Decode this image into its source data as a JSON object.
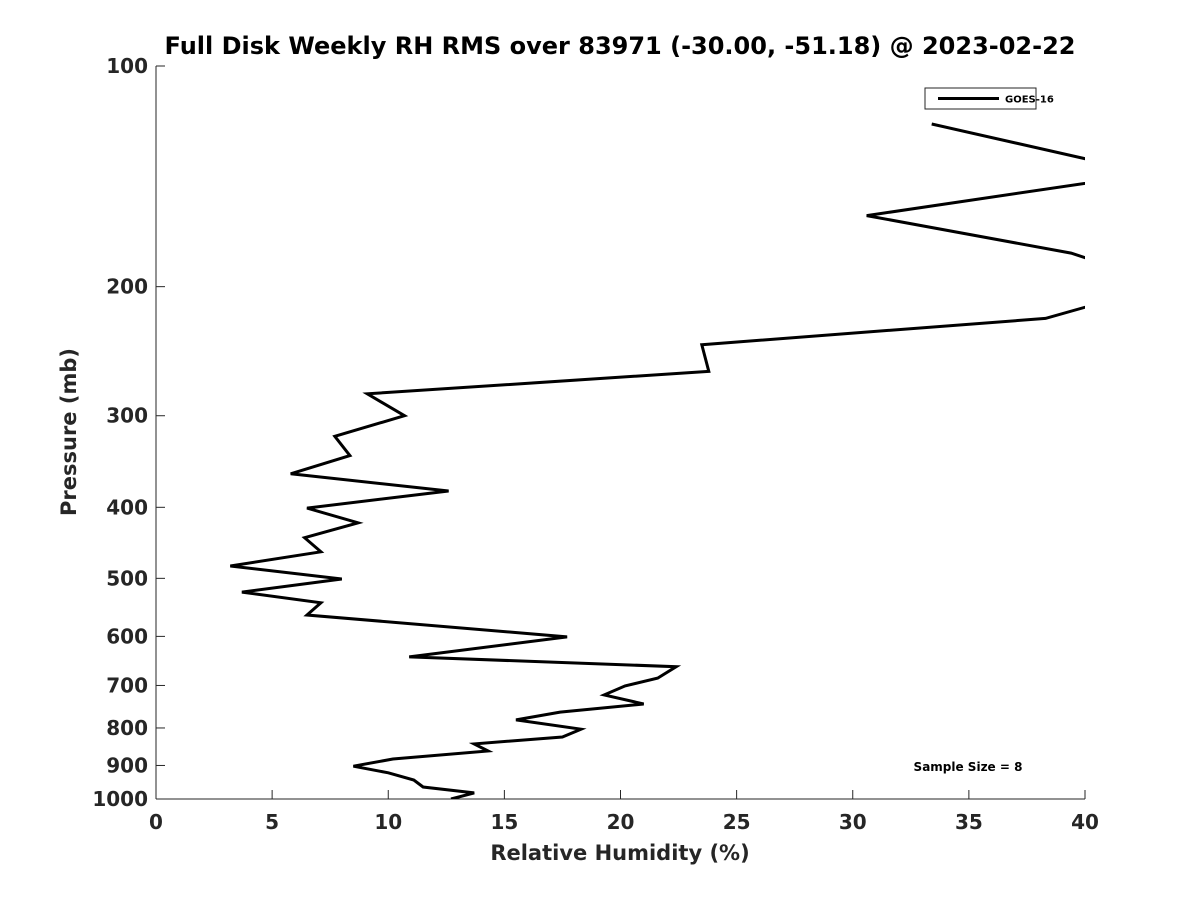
{
  "chart_data": {
    "type": "line",
    "title": "Full Disk Weekly RH RMS over 83971 (-30.00, -51.18) @ 2023-02-22",
    "xlabel": "Relative Humidity (%)",
    "ylabel": "Pressure (mb)",
    "xlim": [
      0,
      40
    ],
    "ylim": [
      100,
      1000
    ],
    "yscale": "log",
    "y_reversed": true,
    "grid": false,
    "xticks": [
      0,
      5,
      10,
      15,
      20,
      25,
      30,
      35,
      40
    ],
    "xtick_labels": [
      "0",
      "5",
      "10",
      "15",
      "20",
      "25",
      "30",
      "35",
      "40"
    ],
    "yticks": [
      100,
      200,
      300,
      400,
      500,
      600,
      700,
      800,
      900,
      1000
    ],
    "ytick_labels": [
      "100",
      "200",
      "300",
      "400",
      "500",
      "600",
      "700",
      "800",
      "900",
      "1000"
    ],
    "legend": {
      "placement": "top-right",
      "entries": [
        "GOES-16"
      ]
    },
    "annotation": "Sample Size = 8",
    "series": [
      {
        "name": "GOES-16",
        "color": "#000000",
        "points": [
          [
            33.4,
            120
          ],
          [
            41,
            136
          ],
          [
            41,
            143
          ],
          [
            30.6,
            160
          ],
          [
            39.4,
            180
          ],
          [
            41,
            187
          ],
          [
            41,
            209
          ],
          [
            38.3,
            221
          ],
          [
            23.5,
            240
          ],
          [
            23.8,
            261
          ],
          [
            9.1,
            280
          ],
          [
            10.7,
            300
          ],
          [
            7.7,
            320
          ],
          [
            8.35,
            340
          ],
          [
            5.8,
            360
          ],
          [
            12.6,
            380
          ],
          [
            6.5,
            401
          ],
          [
            8.7,
            420
          ],
          [
            6.4,
            440
          ],
          [
            7.1,
            460
          ],
          [
            3.2,
            481
          ],
          [
            8.0,
            501
          ],
          [
            3.7,
            522
          ],
          [
            7.1,
            540
          ],
          [
            6.5,
            561
          ],
          [
            17.7,
            601
          ],
          [
            10.9,
            640
          ],
          [
            22.4,
            660
          ],
          [
            21.6,
            684
          ],
          [
            20.2,
            701
          ],
          [
            19.3,
            721
          ],
          [
            21.0,
            742
          ],
          [
            17.4,
            761
          ],
          [
            15.5,
            780
          ],
          [
            18.3,
            803
          ],
          [
            17.5,
            823
          ],
          [
            13.7,
            841
          ],
          [
            14.3,
            860
          ],
          [
            10.2,
            882
          ],
          [
            8.5,
            902
          ],
          [
            10.0,
            921
          ],
          [
            11.1,
            942
          ],
          [
            11.5,
            963
          ],
          [
            13.7,
            981
          ],
          [
            12.7,
            1000
          ]
        ]
      }
    ]
  }
}
